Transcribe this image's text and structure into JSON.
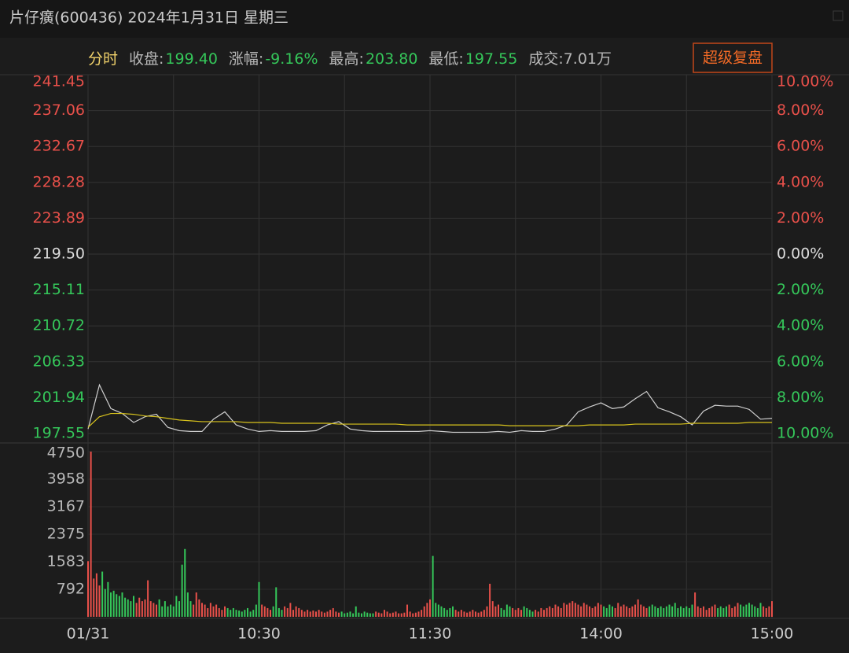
{
  "header": {
    "title": "片仔癀(600436) 2024年1月31日 星期三"
  },
  "info": {
    "mode": "分时",
    "items": [
      {
        "label": "收盘:",
        "value": "199.40"
      },
      {
        "label": "涨幅:",
        "value": "-9.16%"
      },
      {
        "label": "最高:",
        "value": "203.80"
      },
      {
        "label": "最低:",
        "value": "197.55"
      },
      {
        "label": "成交:7.01万"
      }
    ],
    "button": "超级复盘"
  },
  "chart_data": [
    {
      "type": "line",
      "x": [
        0,
        4,
        8,
        12,
        16,
        20,
        24,
        28,
        32,
        36,
        40,
        44,
        48,
        52,
        56,
        60,
        64,
        68,
        72,
        76,
        80,
        84,
        88,
        92,
        96,
        100,
        104,
        108,
        112,
        116,
        120,
        124,
        128,
        132,
        136,
        140,
        144,
        148,
        152,
        156,
        160,
        164,
        168,
        172,
        176,
        180,
        184,
        188,
        192,
        196,
        200,
        204,
        208,
        212,
        216,
        220,
        224,
        228,
        232,
        236,
        240
      ],
      "xlim": [
        0,
        240
      ],
      "xticks": [
        {
          "value": 0,
          "label": "01/31"
        },
        {
          "value": 60,
          "label": "10:30"
        },
        {
          "value": 120,
          "label": "11:30"
        },
        {
          "value": 180,
          "label": "14:00"
        },
        {
          "value": 240,
          "label": "15:00"
        }
      ],
      "xgrid": [
        0,
        30,
        60,
        90,
        120,
        150,
        180,
        210,
        240
      ],
      "ylim": [
        197.55,
        241.45
      ],
      "yticks": [
        241.45,
        237.06,
        232.67,
        228.28,
        223.89,
        {
          "value": 219.5,
          "label": "219.50"
        },
        215.11,
        210.72,
        206.33,
        201.94,
        197.55
      ],
      "y2lim": [
        -10,
        10
      ],
      "y2ticks": [
        {
          "value": 10,
          "label": "10.00%"
        },
        {
          "value": 8,
          "label": "8.00%"
        },
        {
          "value": 6,
          "label": "6.00%"
        },
        {
          "value": 4,
          "label": "4.00%"
        },
        {
          "value": 2,
          "label": "2.00%"
        },
        {
          "value": 0,
          "label": "0.00%"
        },
        {
          "value": -2,
          "label": "2.00%"
        },
        {
          "value": -4,
          "label": "4.00%"
        },
        {
          "value": -6,
          "label": "6.00%"
        },
        {
          "value": -8,
          "label": "8.00%"
        },
        {
          "value": -10,
          "label": "10.00%"
        }
      ],
      "up_color": "#e8504a",
      "down_color": "#35c75a",
      "series": [
        {
          "color": "#cfcfcf",
          "values": [
            198.1,
            203.5,
            200.6,
            200.0,
            198.9,
            199.6,
            199.9,
            198.3,
            197.9,
            197.8,
            197.8,
            199.3,
            200.2,
            198.6,
            198.1,
            197.8,
            197.9,
            197.8,
            197.8,
            197.8,
            197.9,
            198.6,
            199.0,
            198.1,
            197.9,
            197.8,
            197.8,
            197.8,
            197.8,
            197.8,
            197.9,
            197.8,
            197.7,
            197.7,
            197.7,
            197.7,
            197.8,
            197.7,
            197.9,
            197.8,
            197.8,
            198.1,
            198.6,
            200.2,
            200.8,
            201.3,
            200.6,
            200.8,
            201.8,
            202.7,
            200.7,
            200.2,
            199.6,
            198.6,
            200.3,
            201.0,
            200.9,
            200.9,
            200.5,
            199.3,
            199.4
          ]
        },
        {
          "color": "#d8c31c",
          "values": [
            198.3,
            199.6,
            200.0,
            200.0,
            199.9,
            199.7,
            199.6,
            199.4,
            199.2,
            199.1,
            199.0,
            199.0,
            199.0,
            199.0,
            198.9,
            198.9,
            198.9,
            198.8,
            198.8,
            198.8,
            198.8,
            198.8,
            198.7,
            198.7,
            198.7,
            198.7,
            198.7,
            198.7,
            198.6,
            198.6,
            198.6,
            198.6,
            198.6,
            198.6,
            198.6,
            198.6,
            198.6,
            198.5,
            198.5,
            198.5,
            198.5,
            198.5,
            198.5,
            198.5,
            198.6,
            198.6,
            198.6,
            198.6,
            198.7,
            198.7,
            198.7,
            198.7,
            198.7,
            198.8,
            198.8,
            198.8,
            198.8,
            198.8,
            198.9,
            198.9,
            198.9
          ]
        }
      ]
    },
    {
      "type": "bar",
      "xlim": [
        0,
        240
      ],
      "ylim": [
        0,
        4750
      ],
      "yticks": [
        4750,
        3958,
        3167,
        2375,
        1583,
        792
      ],
      "up_color": "#e8504a",
      "down_color": "#35c75a",
      "values": [
        1600,
        4750,
        1100,
        1250,
        900,
        1300,
        800,
        1000,
        700,
        750,
        650,
        600,
        700,
        550,
        500,
        450,
        600,
        400,
        550,
        450,
        500,
        1050,
        450,
        400,
        350,
        500,
        300,
        450,
        300,
        350,
        300,
        600,
        450,
        1500,
        1950,
        700,
        450,
        350,
        700,
        500,
        400,
        350,
        250,
        400,
        300,
        350,
        250,
        200,
        300,
        250,
        200,
        250,
        200,
        180,
        150,
        200,
        250,
        150,
        200,
        350,
        1000,
        350,
        300,
        250,
        200,
        300,
        850,
        250,
        200,
        300,
        250,
        400,
        200,
        300,
        250,
        200,
        150,
        200,
        150,
        180,
        150,
        200,
        150,
        120,
        150,
        200,
        250,
        150,
        120,
        150,
        100,
        120,
        150,
        100,
        300,
        120,
        100,
        150,
        120,
        100,
        100,
        150,
        120,
        100,
        200,
        150,
        100,
        120,
        150,
        100,
        100,
        120,
        350,
        150,
        100,
        120,
        150,
        200,
        300,
        400,
        500,
        1750,
        400,
        350,
        300,
        250,
        200,
        250,
        300,
        200,
        150,
        200,
        150,
        120,
        150,
        200,
        150,
        120,
        150,
        200,
        300,
        950,
        450,
        300,
        350,
        250,
        200,
        350,
        300,
        250,
        200,
        250,
        200,
        300,
        250,
        200,
        150,
        200,
        150,
        250,
        200,
        250,
        300,
        250,
        350,
        300,
        250,
        400,
        350,
        400,
        450,
        400,
        350,
        300,
        400,
        350,
        300,
        250,
        300,
        400,
        350,
        300,
        250,
        350,
        300,
        250,
        400,
        300,
        350,
        300,
        250,
        300,
        350,
        500,
        350,
        300,
        250,
        300,
        350,
        300,
        250,
        300,
        250,
        300,
        350,
        300,
        400,
        250,
        300,
        250,
        300,
        250,
        350,
        700,
        300,
        250,
        300,
        200,
        250,
        300,
        350,
        250,
        300,
        250,
        300,
        350,
        250,
        300,
        400,
        350,
        300,
        350,
        400,
        350,
        300,
        250,
        400,
        300,
        250,
        300,
        450
      ]
    }
  ]
}
